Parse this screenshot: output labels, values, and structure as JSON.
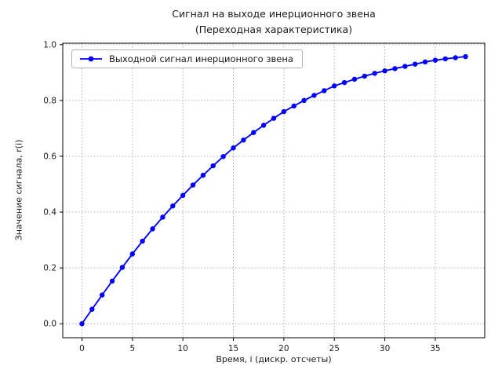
{
  "figure": {
    "title_line1": "Сигнал на выходе инерционного звена",
    "title_line2": "(Переходная характеристика)",
    "xlabel": "Время, i (дискр. отсчеты)",
    "ylabel": "Значение сигнала, r(i)"
  },
  "legend": {
    "label": "Выходной сигнал инерционного звена"
  },
  "chart_data": {
    "type": "line",
    "title": "Сигнал на выходе инерционного звена (Переходная характеристика)",
    "xlabel": "Время, i (дискр. отсчеты)",
    "ylabel": "Значение сигнала, r(i)",
    "legend_entries": [
      "Выходной сигнал инерционного звена"
    ],
    "legend_position": "upper left",
    "grid": true,
    "grid_style": "dotted",
    "line_color": "#0000ff",
    "marker": "o",
    "x": [
      0,
      1,
      2,
      3,
      4,
      5,
      6,
      7,
      8,
      9,
      10,
      11,
      12,
      13,
      14,
      15,
      16,
      17,
      18,
      19,
      20,
      21,
      22,
      23,
      24,
      25,
      26,
      27,
      28,
      29,
      30,
      31,
      32,
      33,
      34,
      35,
      36,
      37,
      38
    ],
    "y": [
      0.0,
      0.052,
      0.103,
      0.153,
      0.202,
      0.25,
      0.296,
      0.34,
      0.382,
      0.422,
      0.46,
      0.497,
      0.532,
      0.566,
      0.599,
      0.63,
      0.658,
      0.685,
      0.711,
      0.736,
      0.76,
      0.78,
      0.8,
      0.818,
      0.835,
      0.852,
      0.864,
      0.876,
      0.887,
      0.897,
      0.906,
      0.914,
      0.922,
      0.93,
      0.938,
      0.944,
      0.949,
      0.953,
      0.957
    ],
    "xticks": [
      0,
      5,
      10,
      15,
      20,
      25,
      30,
      35
    ],
    "xtick_labels": [
      "0",
      "5",
      "10",
      "15",
      "20",
      "25",
      "30",
      "35"
    ],
    "yticks": [
      0.0,
      0.2,
      0.4,
      0.6,
      0.8,
      1.0
    ],
    "ytick_labels": [
      "0.0",
      "0.2",
      "0.4",
      "0.6",
      "0.8",
      "1.0"
    ],
    "xlim": [
      -1.9,
      39.9
    ],
    "ylim": [
      -0.05,
      1.005
    ]
  }
}
